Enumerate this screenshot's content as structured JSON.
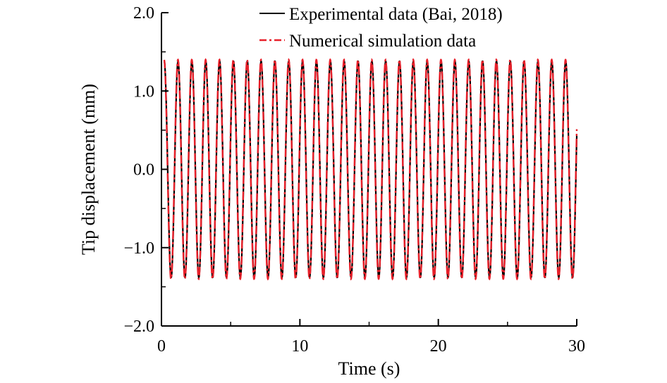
{
  "chart_data": {
    "type": "line",
    "title": "",
    "xlabel": "Time (s)",
    "ylabel": "Tip displacement (mm)",
    "xlim": [
      0,
      30
    ],
    "ylim": [
      -2.0,
      2.0
    ],
    "xticks": [
      0,
      10,
      20,
      30
    ],
    "xtick_labels": [
      "0",
      "10",
      "20",
      "30"
    ],
    "yticks": [
      2.0,
      1.0,
      0.0,
      -1.0,
      -2.0
    ],
    "ytick_labels": [
      "2.0",
      "1.0",
      "0.0",
      "−1.0",
      "−2.0"
    ],
    "grid": false,
    "legend_position": "top-right",
    "series": [
      {
        "name": "Experimental data (Bai, 2018)",
        "style": "solid",
        "color": "#000000",
        "frequency_hz": 1.0,
        "amplitude_mm": 1.38,
        "x_range": [
          0.2,
          30
        ]
      },
      {
        "name": "Numerical simulation data",
        "style": "dash-dot",
        "color": "#e8202a",
        "frequency_hz": 1.0,
        "amplitude_mm": 1.4,
        "x_range": [
          0.2,
          30
        ]
      }
    ]
  }
}
